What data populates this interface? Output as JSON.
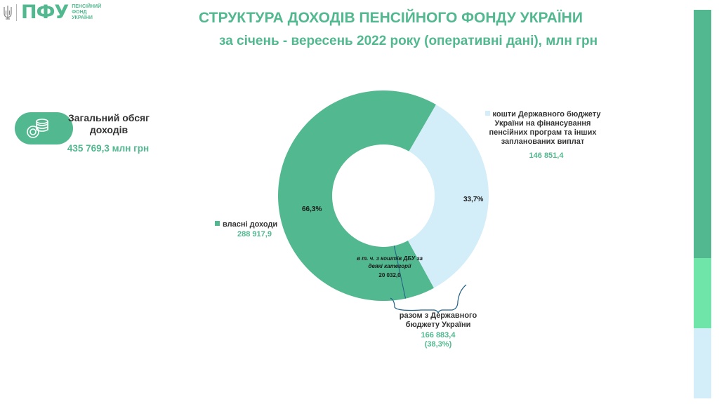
{
  "header": {
    "logo_abbr": "ПФУ",
    "logo_full_lines": [
      "ПЕНСІЙНИЙ",
      "ФОНД",
      "УКРАЇНИ"
    ],
    "title": "СТРУКТУРА  ДОХОДІВ ПЕНСІЙНОГО ФОНДУ УКРАЇНИ",
    "subtitle": "за січень - вересень 2022 року (оперативні дані), млн грн"
  },
  "total": {
    "label": "Загальний обсяг доходів",
    "value": "435 769,3 млн грн",
    "icon": "coins-icon"
  },
  "colors": {
    "accent": "#52b88f",
    "own": "#52b88f",
    "state": "#d3eef8",
    "bar_mid": "#70e5aa",
    "text": "#333333"
  },
  "chart_data": {
    "type": "pie",
    "variant": "donut",
    "series": [
      {
        "name": "власні доходи",
        "value": 288917.9,
        "value_label": "288 917,9",
        "percent_label": "66,3%",
        "color": "#52b88f"
      },
      {
        "name": "кошти Державного бюджету України на фінансування пенсійних програм та інших запланованих  виплат",
        "name_lines": [
          "кошти Державного бюджету",
          "України на фінансування",
          "пенсійних програм та інших",
          "запланованих  виплат"
        ],
        "value": 146851.4,
        "value_label": "146 851,4",
        "percent_label": "33,7%",
        "color": "#d3eef8"
      }
    ],
    "annotations": [
      {
        "text_lines": [
          "в т. ч. з коштів ДБУ за",
          "деякі категорії"
        ],
        "value": 20032.0,
        "value_label": "20 032,0",
        "part_of": "власні доходи"
      },
      {
        "text_lines": [
          "разом з Державного",
          "бюджету України"
        ],
        "value": 166883.4,
        "value_label": "166 883,4",
        "percent_label": "(38,3%)"
      }
    ]
  }
}
